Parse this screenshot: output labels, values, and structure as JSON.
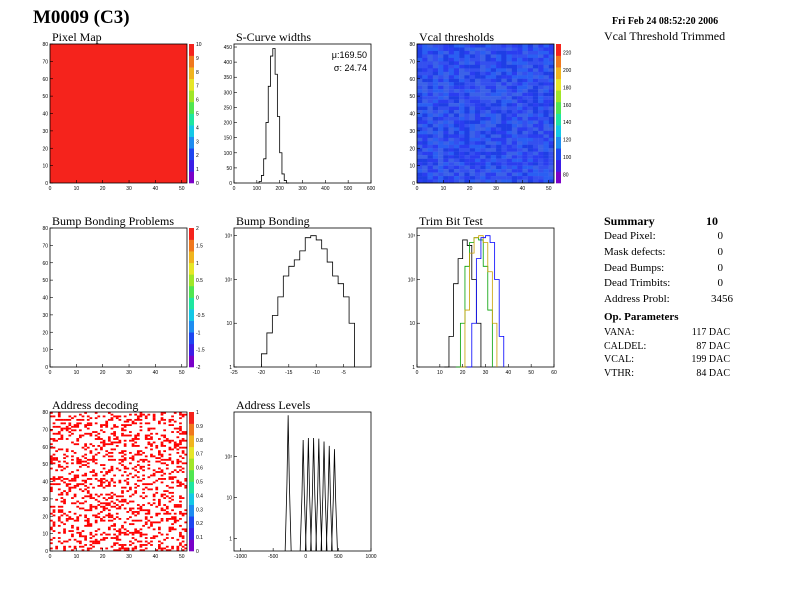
{
  "header": {
    "module": "M0009 (C3)",
    "date": "Fri Feb 24 08:52:20 2006",
    "subtitle": "Vcal Threshold Trimmed"
  },
  "summary": {
    "title": "Summary",
    "total": "10",
    "rows": [
      {
        "label": "Dead Pixel:",
        "value": "0"
      },
      {
        "label": "Mask defects:",
        "value": "0"
      },
      {
        "label": "Dead Bumps:",
        "value": "0"
      },
      {
        "label": "Dead Trimbits:",
        "value": "0"
      },
      {
        "label": "Address Probl:",
        "value": "3456"
      }
    ],
    "op_title": "Op. Parameters",
    "op_rows": [
      {
        "label": "VANA:",
        "value": "117 DAC"
      },
      {
        "label": "CALDEL:",
        "value": "87 DAC"
      },
      {
        "label": "VCAL:",
        "value": "199 DAC"
      },
      {
        "label": "VTHR:",
        "value": "84 DAC"
      }
    ]
  },
  "chart_data": [
    {
      "id": "pixel-map",
      "type": "heatmap",
      "title": "Pixel Map",
      "x_ticks": [
        "0",
        "10",
        "20",
        "30",
        "40",
        "50"
      ],
      "xlim": [
        0,
        52
      ],
      "y_ticks": [
        "0",
        "10",
        "20",
        "30",
        "40",
        "50",
        "60",
        "70",
        "80"
      ],
      "ylim": [
        0,
        80
      ],
      "z_ticks": [
        "0",
        "1",
        "2",
        "3",
        "4",
        "5",
        "6",
        "7",
        "8",
        "9",
        "10"
      ],
      "zlim": [
        0,
        10
      ],
      "uniform_value": 10,
      "cell_color": "#f5231c"
    },
    {
      "id": "s-curve-widths",
      "type": "bar",
      "title": "S-Curve widths",
      "x_ticks": [
        "0",
        "100",
        "200",
        "300",
        "400",
        "500",
        "600"
      ],
      "xlim": [
        0,
        600
      ],
      "y_ticks": [
        "0",
        "50",
        "100",
        "150",
        "200",
        "250",
        "300",
        "350",
        "400",
        "450"
      ],
      "ylim": [
        0,
        460
      ],
      "stats": {
        "mean_label": "μ:169.50",
        "sigma_label": "σ: 24.74"
      },
      "histogram": {
        "x_start": 100,
        "bin_width": 10,
        "counts": [
          0,
          5,
          25,
          80,
          200,
          320,
          420,
          445,
          360,
          220,
          100,
          30,
          8,
          0
        ]
      }
    },
    {
      "id": "vcal-thresholds",
      "type": "heatmap",
      "title": "Vcal thresholds",
      "x_ticks": [
        "0",
        "10",
        "20",
        "30",
        "40",
        "50"
      ],
      "xlim": [
        0,
        52
      ],
      "y_ticks": [
        "0",
        "10",
        "20",
        "30",
        "40",
        "50",
        "60",
        "70",
        "80"
      ],
      "ylim": [
        0,
        80
      ],
      "z_ticks": [
        "80",
        "100",
        "120",
        "140",
        "160",
        "180",
        "200",
        "220"
      ],
      "zlim": [
        70,
        230
      ],
      "typical_value": 100,
      "cell_colors": [
        "#2a3df0",
        "#3450ef",
        "#2a5ff2",
        "#3b62e8",
        "#1e3ee5"
      ]
    },
    {
      "id": "bump-bonding-problems",
      "type": "heatmap",
      "title": "Bump Bonding Problems",
      "x_ticks": [
        "0",
        "10",
        "20",
        "30",
        "40",
        "50"
      ],
      "xlim": [
        0,
        52
      ],
      "y_ticks": [
        "0",
        "10",
        "20",
        "30",
        "40",
        "50",
        "60",
        "70",
        "80"
      ],
      "ylim": [
        0,
        80
      ],
      "z_ticks": [
        "-2",
        "-1.5",
        "-1",
        "-0.5",
        "0",
        "0.5",
        "1",
        "1.5",
        "2"
      ],
      "zlim": [
        -2,
        2
      ]
    },
    {
      "id": "bump-bonding",
      "type": "bar",
      "title": "Bump Bonding",
      "x_ticks": [
        "-25",
        "-20",
        "-15",
        "-10",
        "-5"
      ],
      "xlim": [
        -25,
        0
      ],
      "log_y": true,
      "y_ticks": [
        "1",
        "10",
        "10²",
        "10³"
      ],
      "ylim": [
        1,
        1500
      ],
      "histogram": {
        "x_start": -20,
        "bin_width": 1,
        "counts": [
          2,
          6,
          15,
          40,
          120,
          200,
          280,
          450,
          900,
          1000,
          800,
          500,
          250,
          120,
          80,
          40,
          10
        ]
      }
    },
    {
      "id": "trim-bit-test",
      "type": "line",
      "title": "Trim Bit Test",
      "x_ticks": [
        "0",
        "10",
        "20",
        "30",
        "40",
        "50",
        "60"
      ],
      "xlim": [
        0,
        60
      ],
      "log_y": true,
      "y_ticks": [
        "1",
        "10",
        "10²",
        "10³"
      ],
      "ylim": [
        1,
        1500
      ],
      "series": [
        {
          "color": "#000000",
          "x": [
            12,
            14,
            16,
            18,
            20,
            22,
            24,
            26,
            28
          ],
          "y": [
            1,
            5,
            80,
            300,
            800,
            600,
            100,
            10,
            1
          ]
        },
        {
          "color": "#00a000",
          "x": [
            17,
            19,
            21,
            23,
            25,
            27,
            29,
            31,
            33
          ],
          "y": [
            1,
            10,
            200,
            700,
            900,
            800,
            200,
            20,
            1
          ]
        },
        {
          "color": "#c8a000",
          "x": [
            19,
            21,
            23,
            25,
            27,
            29,
            31,
            33,
            35
          ],
          "y": [
            1,
            20,
            400,
            900,
            1000,
            700,
            150,
            10,
            1
          ]
        },
        {
          "color": "#0000ff",
          "x": [
            22,
            24,
            26,
            28,
            30,
            32,
            34,
            36,
            38
          ],
          "y": [
            1,
            10,
            300,
            900,
            1000,
            700,
            100,
            5,
            1
          ]
        }
      ]
    },
    {
      "id": "address-decoding",
      "type": "heatmap",
      "title": "Address decoding",
      "x_ticks": [
        "0",
        "10",
        "20",
        "30",
        "40",
        "50"
      ],
      "xlim": [
        0,
        52
      ],
      "y_ticks": [
        "0",
        "10",
        "20",
        "30",
        "40",
        "50",
        "60",
        "70",
        "80"
      ],
      "ylim": [
        0,
        80
      ],
      "z_ticks": [
        "0",
        "0.1",
        "0.2",
        "0.3",
        "0.4",
        "0.5",
        "0.6",
        "0.7",
        "0.8",
        "0.9",
        "1"
      ],
      "zlim": [
        0,
        1
      ],
      "fill_fraction": 0.28,
      "cell_color": "#ff0000"
    },
    {
      "id": "address-levels",
      "type": "bar",
      "title": "Address Levels",
      "x_ticks": [
        "-1000",
        "-500",
        "0",
        "500",
        "1000"
      ],
      "xlim": [
        -1100,
        1000
      ],
      "log_y": true,
      "y_ticks": [
        "1",
        "10",
        "10²"
      ],
      "ylim": [
        0.5,
        1200
      ],
      "peaks": [
        {
          "x": -270,
          "height": 1000
        },
        {
          "x": -40,
          "height": 250
        },
        {
          "x": 40,
          "height": 280
        },
        {
          "x": 120,
          "height": 280
        },
        {
          "x": 200,
          "height": 270
        },
        {
          "x": 280,
          "height": 230
        },
        {
          "x": 360,
          "height": 180
        },
        {
          "x": 440,
          "height": 150
        }
      ]
    }
  ]
}
